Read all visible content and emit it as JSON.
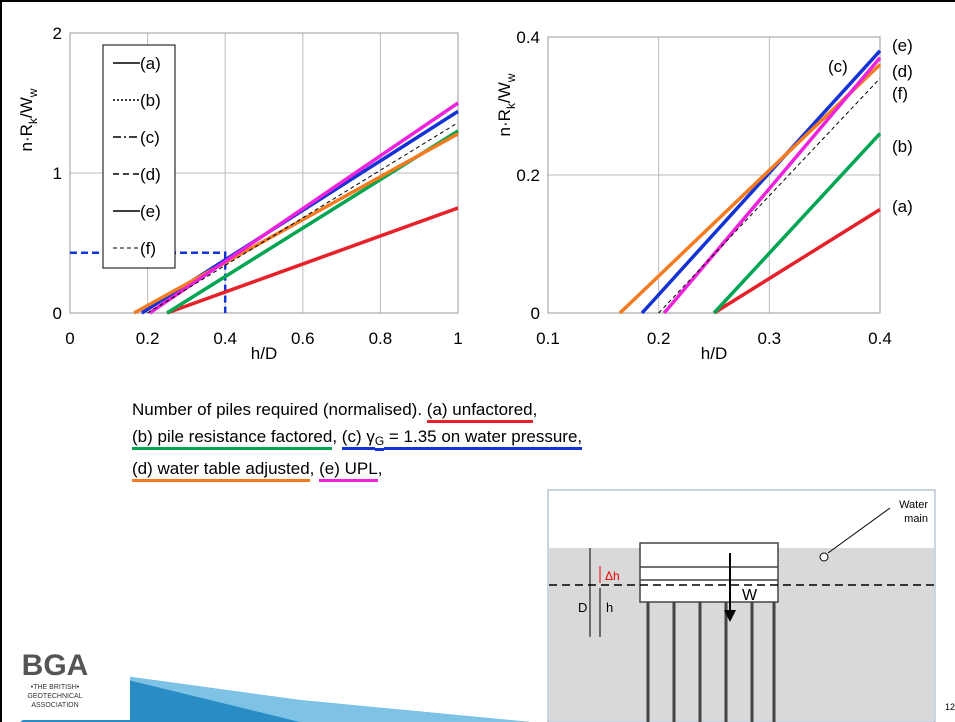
{
  "charts": [
    {
      "chart_data": {
        "type": "line",
        "x_label": "h/D",
        "y_label": [
          "n·R",
          "k",
          "/W",
          "w"
        ],
        "xlim": [
          0,
          1
        ],
        "xticks": [
          0,
          0.2,
          0.4,
          0.6,
          0.8,
          1
        ],
        "ylim": [
          0,
          2
        ],
        "yticks": [
          0,
          1,
          2
        ],
        "grid": true,
        "legend": "upper-left",
        "series": [
          {
            "name": "(a)",
            "color": "#e8202a",
            "dash": "solid",
            "x": [
              0.25,
              1
            ],
            "values": [
              0,
              0.75
            ]
          },
          {
            "name": "(b)",
            "color": "#00a651",
            "dash": "dotted",
            "x": [
              0.25,
              1
            ],
            "values": [
              0,
              1.3
            ]
          },
          {
            "name": "(c)",
            "color": "#1433d6",
            "dash": "dashdot",
            "x": [
              0.185,
              1
            ],
            "values": [
              0,
              1.44
            ]
          },
          {
            "name": "(d)",
            "color": "#f47b20",
            "dash": "dashed",
            "x": [
              0.165,
              1
            ],
            "values": [
              0,
              1.28
            ]
          },
          {
            "name": "(e)",
            "color": "#ee22dd",
            "dash": "solid",
            "x": [
              0.205,
              1
            ],
            "values": [
              0,
              1.5
            ]
          },
          {
            "name": "(f)",
            "color": "#000000",
            "dash": "thin",
            "x": [
              0.2,
              1
            ],
            "values": [
              0,
              1.36
            ]
          }
        ],
        "guide": {
          "color": "#1433d6",
          "x": [
            0,
            0.4,
            0.4
          ],
          "values": [
            0.43,
            0.43,
            0
          ]
        }
      }
    },
    {
      "chart_data": {
        "type": "line",
        "x_label": "h/D",
        "y_label": [
          "n·R",
          "k",
          "/W",
          "w"
        ],
        "xlim": [
          0.1,
          0.4
        ],
        "xticks": [
          0.1,
          0.2,
          0.3,
          0.4
        ],
        "ylim": [
          0,
          0.4
        ],
        "yticks": [
          0,
          0.2,
          0.4
        ],
        "grid": true,
        "series": [
          {
            "name": "(a)",
            "color": "#e8202a",
            "x": [
              0.25,
              0.4
            ],
            "values": [
              0,
              0.15
            ]
          },
          {
            "name": "(b)",
            "color": "#00a651",
            "x": [
              0.25,
              0.4
            ],
            "values": [
              0,
              0.26
            ]
          },
          {
            "name": "(c)",
            "color": "#1433d6",
            "x": [
              0.185,
              0.4
            ],
            "values": [
              0,
              0.38
            ]
          },
          {
            "name": "(d)",
            "color": "#f47b20",
            "x": [
              0.165,
              0.4
            ],
            "values": [
              0,
              0.36
            ]
          },
          {
            "name": "(e)",
            "color": "#ee22dd",
            "x": [
              0.205,
              0.4
            ],
            "values": [
              0,
              0.37
            ]
          },
          {
            "name": "(f)",
            "color": "#000000",
            "x": [
              0.2,
              0.4
            ],
            "values": [
              0,
              0.34
            ]
          }
        ]
      }
    }
  ],
  "caption": {
    "lines": [
      [
        {
          "text": "Number of piles required (normalised). "
        },
        {
          "text": "(a) unfactored",
          "underline": "#e8202a"
        },
        {
          "text": ","
        }
      ],
      [
        {
          "text": "(b) pile resistance factored",
          "underline": "#00a651"
        },
        {
          "text": ", "
        },
        {
          "text": "(c) γ",
          "underline": "#1433d6"
        },
        {
          "text": "G",
          "underline": "#1433d6",
          "sub": true
        },
        {
          "text": " = 1.35 on water pressure,",
          "underline": "#1433d6"
        }
      ],
      [
        {
          "text": "(d) water table adjusted",
          "underline": "#f47b20"
        },
        {
          "text": ", "
        },
        {
          "text": "(e) UPL",
          "underline": "#ee22dd"
        },
        {
          "text": ","
        }
      ]
    ]
  },
  "diagram": {
    "water_main": [
      "Water",
      "main"
    ],
    "delta_h": "Δh",
    "depth": "D",
    "head": "h",
    "weight": "W"
  },
  "logo": {
    "acronym": "BGA",
    "lines": [
      "•THE BRITISH•",
      "GEOTECHNICAL",
      "ASSOCIATION"
    ]
  },
  "page_number": "12"
}
